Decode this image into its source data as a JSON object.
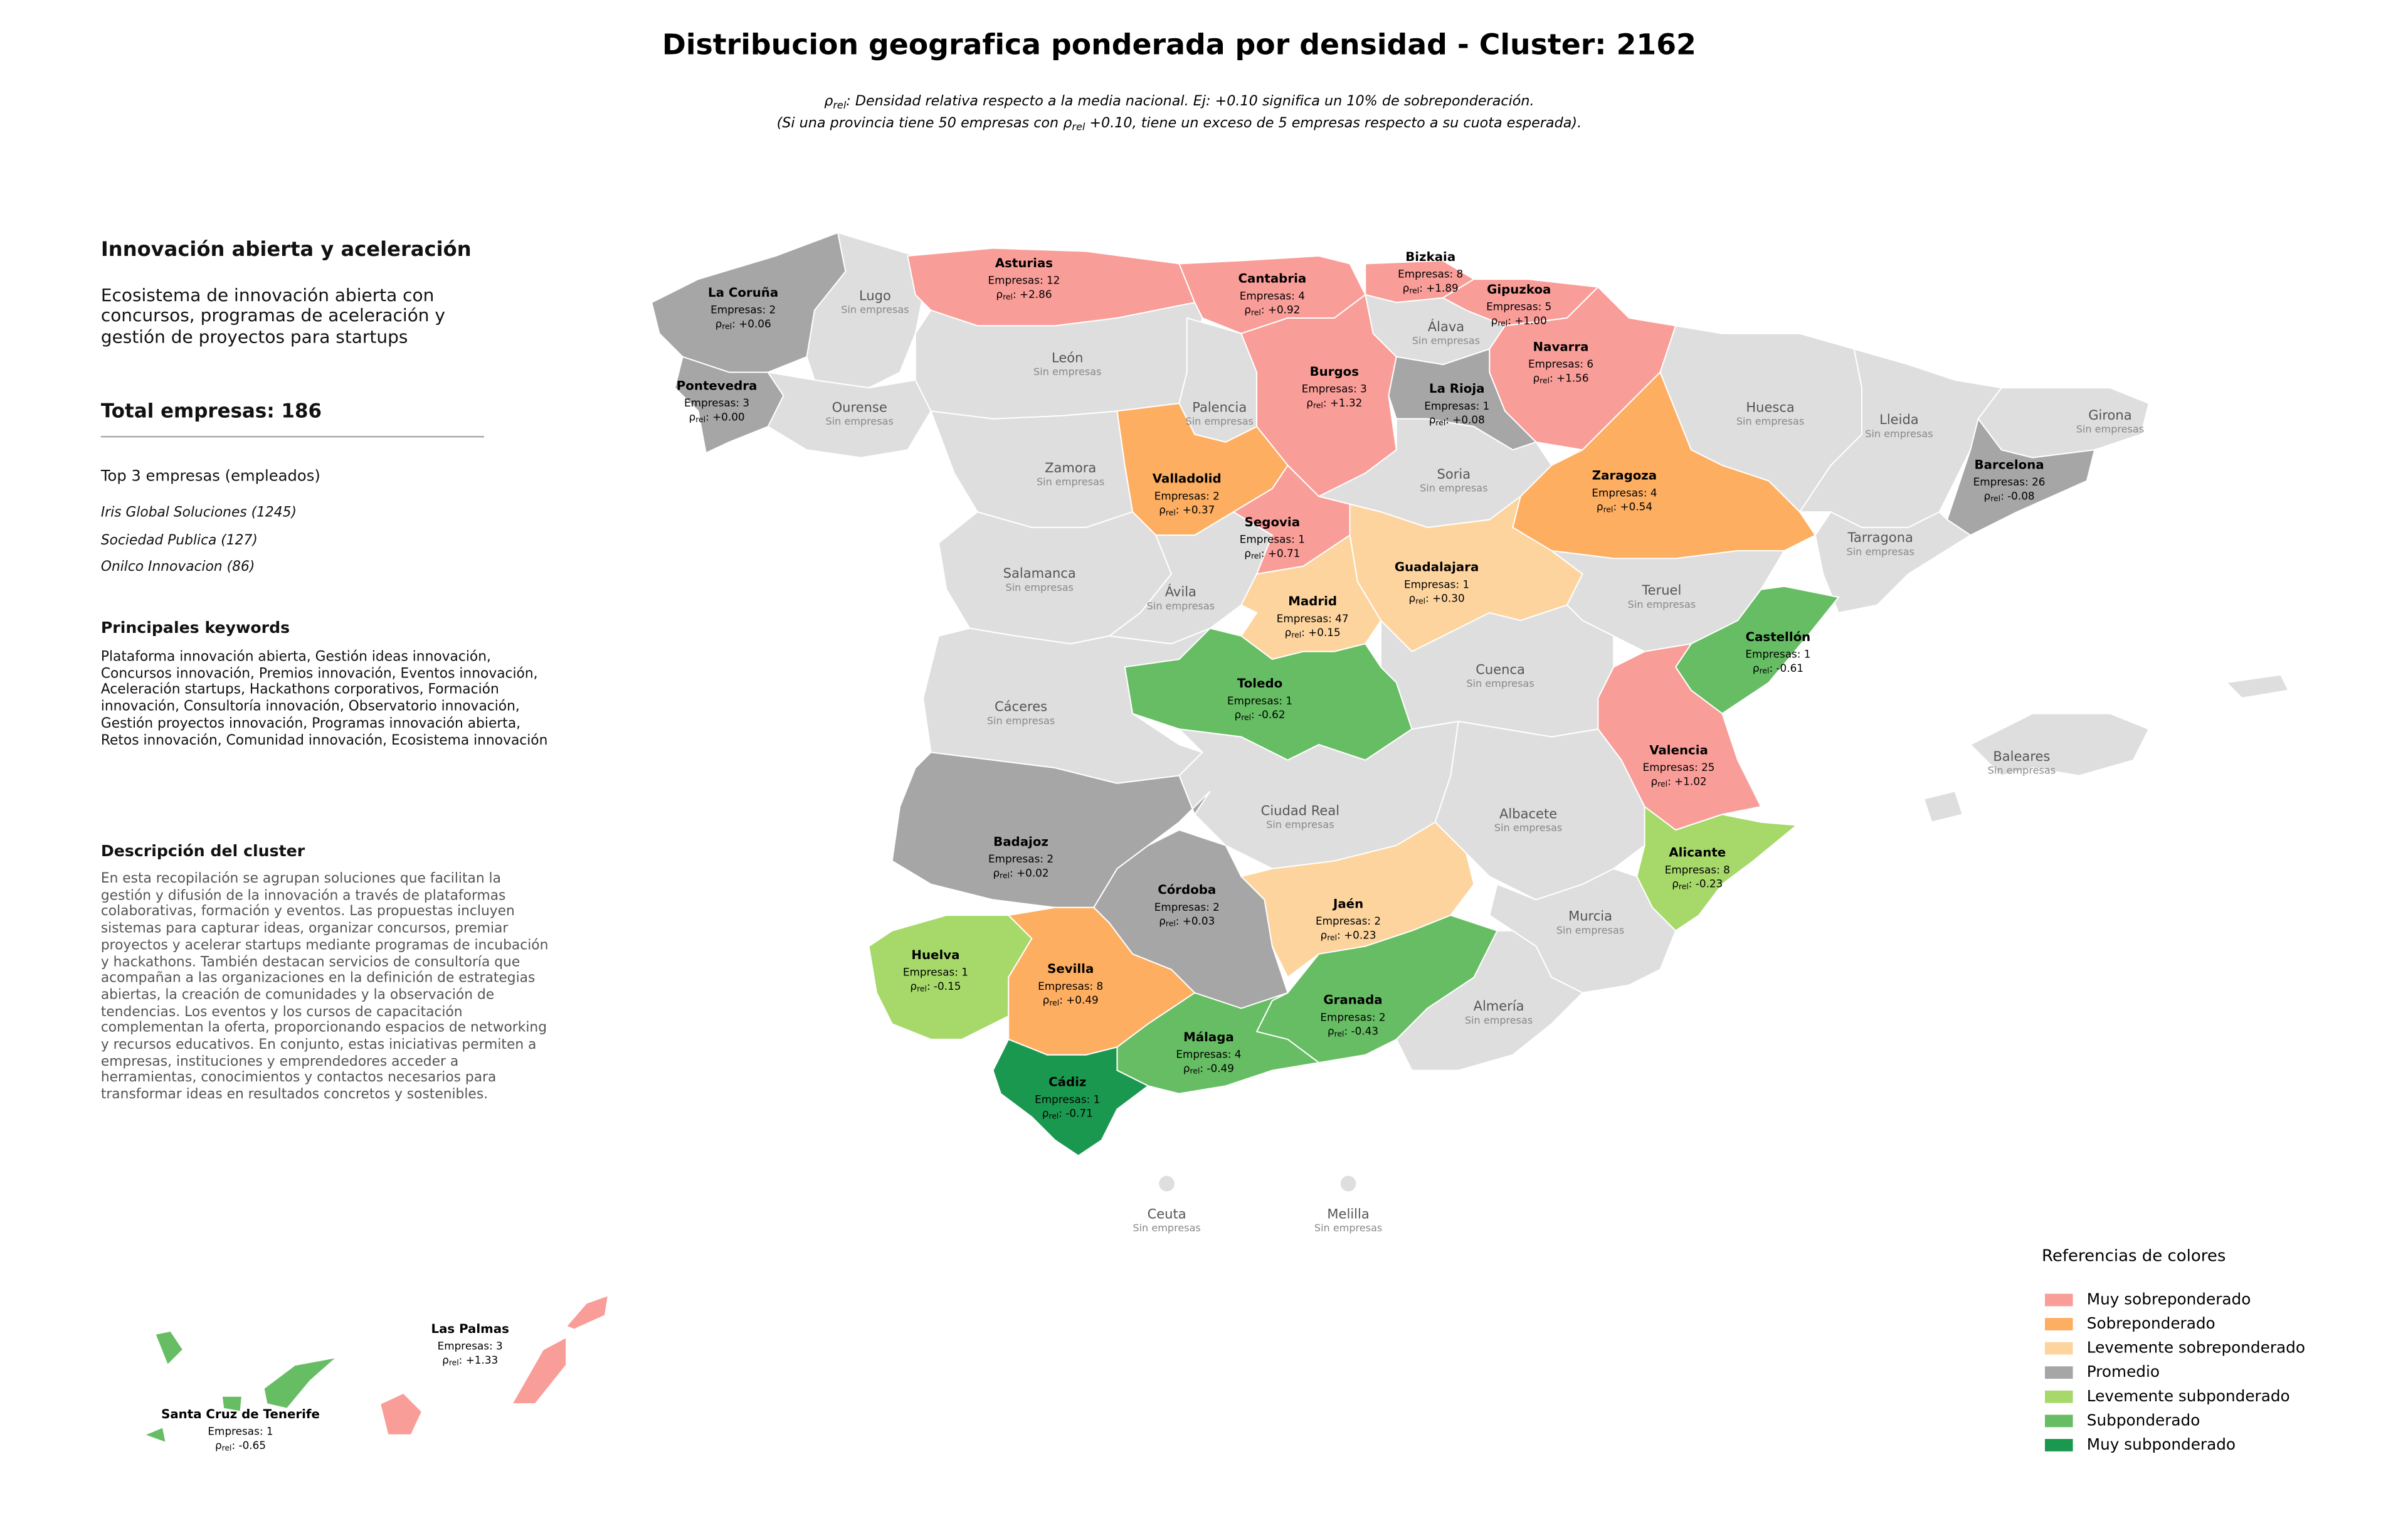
{
  "title": "Distribucion geografica ponderada por densidad - Cluster: 2162",
  "subtitle": {
    "line1": {
      "symbol": "ρ",
      "sub": "rel",
      "text": ": Densidad relativa respecto a la media nacional. Ej: +0.10 significa un 10% de sobreponderación."
    },
    "line2": {
      "before": "(Si una provincia tiene 50 empresas con ",
      "symbol": "ρ",
      "sub": "rel",
      "after": " +0.10, tiene un exceso de 5 empresas respecto a su cuota esperada)."
    }
  },
  "sidebar": {
    "heading": "Innovación abierta y aceleración",
    "description": "Ecosistema de innovación abierta con concursos, programas de aceleración y gestión de proyectos para startups",
    "total": "Total empresas: 186",
    "top_title": "Top 3 empresas (empleados)",
    "top_companies": [
      "Iris Global Soluciones (1245)",
      "Sociedad Publica (127)",
      "Onilco Innovacion (86)"
    ],
    "keywords_title": "Principales keywords",
    "keywords": "Plataforma innovación abierta, Gestión ideas innovación, Concursos innovación, Premios innovación, Eventos innovación, Aceleración startups, Hackathons corporativos, Formación innovación, Consultoría innovación, Observatorio innovación, Gestión proyectos innovación, Programas innovación abierta, Retos innovación, Comunidad innovación, Ecosistema innovación",
    "cluster_title": "Descripción del cluster",
    "cluster_description": "En esta recopilación se agrupan soluciones que facilitan la gestión y difusión de la innovación a través de plataformas colaborativas, formación y eventos. Las propuestas incluyen sistemas para capturar ideas, organizar concursos, premiar proyectos y acelerar startups mediante programas de incubación y hackathons. También destacan servicios de consultoría que acompañan a las organizaciones en la definición de estrategias abiertas, la creación de comunidades y la observación de tendencias. Los eventos y los cursos de capacitación complementan la oferta, proporcionando espacios de networking y recursos educativos. En conjunto, estas iniciativas permiten a empresas, instituciones y emprendedores acceder a herramientas, conocimientos y contactos necesarios para transformar ideas en resultados concretos y sostenibles."
  },
  "provinces": [
    {
      "name": "La Coruña",
      "color": "#a6a6a6",
      "companies": "Empresas: 2",
      "rho": {
        "symbol": "ρ",
        "sub": "rel",
        "value": ": +0.06"
      }
    },
    {
      "name": "Lugo",
      "color": "#dedede",
      "note": "Sin empresas"
    },
    {
      "name": "Pontevedra",
      "color": "#a6a6a6",
      "companies": "Empresas: 3",
      "rho": {
        "symbol": "ρ",
        "sub": "rel",
        "value": ": +0.00"
      }
    },
    {
      "name": "Ourense",
      "color": "#dedede",
      "note": "Sin empresas"
    },
    {
      "name": "Asturias",
      "color": "#f99d98",
      "companies": "Empresas: 12",
      "rho": {
        "symbol": "ρ",
        "sub": "rel",
        "value": ": +2.86"
      }
    },
    {
      "name": "Cantabria",
      "color": "#f99d98",
      "companies": "Empresas: 4",
      "rho": {
        "symbol": "ρ",
        "sub": "rel",
        "value": ": +0.92"
      }
    },
    {
      "name": "Bizkaia",
      "color": "#f99d98",
      "companies": "Empresas: 8",
      "rho": {
        "symbol": "ρ",
        "sub": "rel",
        "value": ": +1.89"
      }
    },
    {
      "name": "Gipuzkoa",
      "color": "#f99d98",
      "companies": "Empresas: 5",
      "rho": {
        "symbol": "ρ",
        "sub": "rel",
        "value": ": +1.00"
      }
    },
    {
      "name": "Álava",
      "color": "#dedede",
      "note": "Sin empresas"
    },
    {
      "name": "Navarra",
      "color": "#f99d98",
      "companies": "Empresas: 6",
      "rho": {
        "symbol": "ρ",
        "sub": "rel",
        "value": ": +1.56"
      }
    },
    {
      "name": "León",
      "color": "#dedede",
      "note": "Sin empresas"
    },
    {
      "name": "Palencia",
      "color": "#dedede",
      "note": "Sin empresas"
    },
    {
      "name": "Burgos",
      "color": "#f99d98",
      "companies": "Empresas: 3",
      "rho": {
        "symbol": "ρ",
        "sub": "rel",
        "value": ": +1.32"
      }
    },
    {
      "name": "La Rioja",
      "color": "#a6a6a6",
      "companies": "Empresas: 1",
      "rho": {
        "symbol": "ρ",
        "sub": "rel",
        "value": ": +0.08"
      }
    },
    {
      "name": "Zamora",
      "color": "#dedede",
      "note": "Sin empresas"
    },
    {
      "name": "Valladolid",
      "color": "#fdae61",
      "companies": "Empresas: 2",
      "rho": {
        "symbol": "ρ",
        "sub": "rel",
        "value": ": +0.37"
      }
    },
    {
      "name": "Soria",
      "color": "#dedede",
      "note": "Sin empresas"
    },
    {
      "name": "Huesca",
      "color": "#dedede",
      "note": "Sin empresas"
    },
    {
      "name": "Zaragoza",
      "color": "#fdae61",
      "companies": "Empresas: 4",
      "rho": {
        "symbol": "ρ",
        "sub": "rel",
        "value": ": +0.54"
      }
    },
    {
      "name": "Lleida",
      "color": "#dedede",
      "note": "Sin empresas"
    },
    {
      "name": "Girona",
      "color": "#dedede",
      "note": "Sin empresas"
    },
    {
      "name": "Barcelona",
      "color": "#a6a6a6",
      "companies": "Empresas: 26",
      "rho": {
        "symbol": "ρ",
        "sub": "rel",
        "value": ": -0.08"
      }
    },
    {
      "name": "Tarragona",
      "color": "#dedede",
      "note": "Sin empresas"
    },
    {
      "name": "Salamanca",
      "color": "#dedede",
      "note": "Sin empresas"
    },
    {
      "name": "Ávila",
      "color": "#dedede",
      "note": "Sin empresas"
    },
    {
      "name": "Segovia",
      "color": "#f99d98",
      "companies": "Empresas: 1",
      "rho": {
        "symbol": "ρ",
        "sub": "rel",
        "value": ": +0.71"
      }
    },
    {
      "name": "Guadalajara",
      "color": "#fdd49e",
      "companies": "Empresas: 1",
      "rho": {
        "symbol": "ρ",
        "sub": "rel",
        "value": ": +0.30"
      }
    },
    {
      "name": "Madrid",
      "color": "#fdd49e",
      "companies": "Empresas: 47",
      "rho": {
        "symbol": "ρ",
        "sub": "rel",
        "value": ": +0.15"
      }
    },
    {
      "name": "Teruel",
      "color": "#dedede",
      "note": "Sin empresas"
    },
    {
      "name": "Castellón",
      "color": "#66bd63",
      "companies": "Empresas: 1",
      "rho": {
        "symbol": "ρ",
        "sub": "rel",
        "value": ": -0.61"
      }
    },
    {
      "name": "Cáceres",
      "color": "#dedede",
      "note": "Sin empresas"
    },
    {
      "name": "Toledo",
      "color": "#66bd63",
      "companies": "Empresas: 1",
      "rho": {
        "symbol": "ρ",
        "sub": "rel",
        "value": ": -0.62"
      }
    },
    {
      "name": "Cuenca",
      "color": "#dedede",
      "note": "Sin empresas"
    },
    {
      "name": "Valencia",
      "color": "#f99d98",
      "companies": "Empresas: 25",
      "rho": {
        "symbol": "ρ",
        "sub": "rel",
        "value": ": +1.02"
      }
    },
    {
      "name": "Ciudad Real",
      "color": "#dedede",
      "note": "Sin empresas"
    },
    {
      "name": "Albacete",
      "color": "#dedede",
      "note": "Sin empresas"
    },
    {
      "name": "Badajoz",
      "color": "#a6a6a6",
      "companies": "Empresas: 2",
      "rho": {
        "symbol": "ρ",
        "sub": "rel",
        "value": ": +0.02"
      }
    },
    {
      "name": "Córdoba",
      "color": "#a6a6a6",
      "companies": "Empresas: 2",
      "rho": {
        "symbol": "ρ",
        "sub": "rel",
        "value": ": +0.03"
      }
    },
    {
      "name": "Jaén",
      "color": "#fdd49e",
      "companies": "Empresas: 2",
      "rho": {
        "symbol": "ρ",
        "sub": "rel",
        "value": ": +0.23"
      }
    },
    {
      "name": "Alicante",
      "color": "#a6d96a",
      "companies": "Empresas: 8",
      "rho": {
        "symbol": "ρ",
        "sub": "rel",
        "value": ": -0.23"
      }
    },
    {
      "name": "Murcia",
      "color": "#dedede",
      "note": "Sin empresas"
    },
    {
      "name": "Huelva",
      "color": "#a6d96a",
      "companies": "Empresas: 1",
      "rho": {
        "symbol": "ρ",
        "sub": "rel",
        "value": ": -0.15"
      }
    },
    {
      "name": "Sevilla",
      "color": "#fdae61",
      "companies": "Empresas: 8",
      "rho": {
        "symbol": "ρ",
        "sub": "rel",
        "value": ": +0.49"
      }
    },
    {
      "name": "Granada",
      "color": "#66bd63",
      "companies": "Empresas: 2",
      "rho": {
        "symbol": "ρ",
        "sub": "rel",
        "value": ": -0.43"
      }
    },
    {
      "name": "Almería",
      "color": "#dedede",
      "note": "Sin empresas"
    },
    {
      "name": "Málaga",
      "color": "#66bd63",
      "companies": "Empresas: 4",
      "rho": {
        "symbol": "ρ",
        "sub": "rel",
        "value": ": -0.49"
      }
    },
    {
      "name": "Cádiz",
      "color": "#1a9850",
      "companies": "Empresas: 1",
      "rho": {
        "symbol": "ρ",
        "sub": "rel",
        "value": ": -0.71"
      }
    },
    {
      "name": "Baleares",
      "color": "#dedede",
      "note": "Sin empresas"
    },
    {
      "name": "Ceuta",
      "color": "#dedede",
      "note": "Sin empresas"
    },
    {
      "name": "Melilla",
      "color": "#dedede",
      "note": "Sin empresas"
    },
    {
      "name": "Las Palmas",
      "color": "#f99d98",
      "companies": "Empresas: 3",
      "rho": {
        "symbol": "ρ",
        "sub": "rel",
        "value": ": +1.33"
      }
    },
    {
      "name": "Santa Cruz de Tenerife",
      "color": "#66bd63",
      "companies": "Empresas: 1",
      "rho": {
        "symbol": "ρ",
        "sub": "rel",
        "value": ": -0.65"
      }
    }
  ],
  "legend": {
    "title": "Referencias de colores",
    "items": [
      {
        "label": "Muy sobreponderado",
        "color": "#f99d98"
      },
      {
        "label": "Sobreponderado",
        "color": "#fdae61"
      },
      {
        "label": "Levemente sobreponderado",
        "color": "#fdd49e"
      },
      {
        "label": "Promedio",
        "color": "#a6a6a6"
      },
      {
        "label": "Levemente subponderado",
        "color": "#a6d96a"
      },
      {
        "label": "Subponderado",
        "color": "#66bd63"
      },
      {
        "label": "Muy subponderado",
        "color": "#1a9850"
      }
    ]
  }
}
